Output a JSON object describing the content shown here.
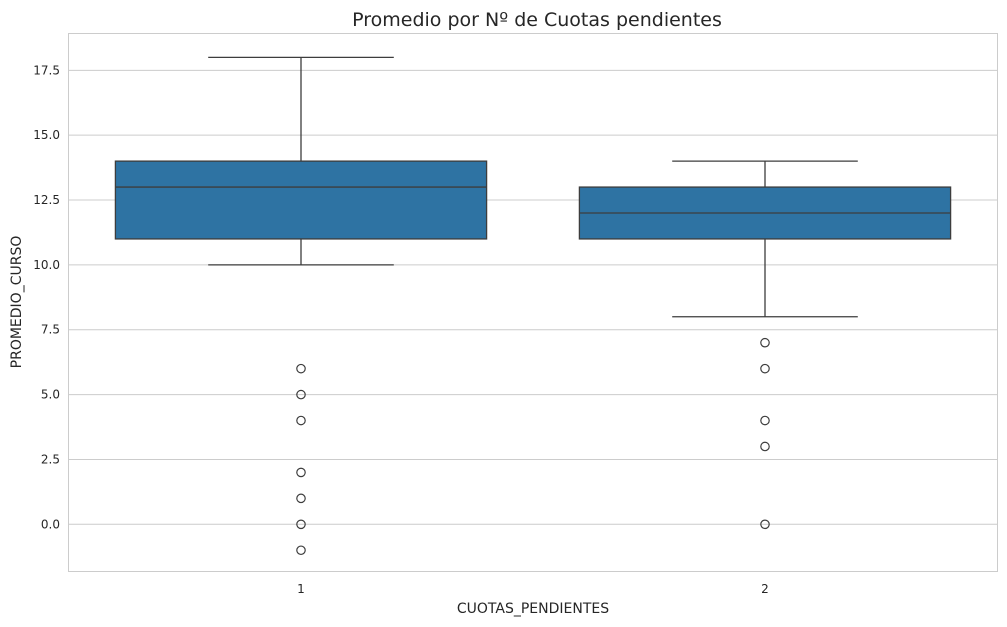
{
  "chart_data": {
    "type": "boxplot",
    "title": "Promedio por Nº de Cuotas pendientes",
    "xlabel": "CUOTAS_PENDIENTES",
    "ylabel": "PROMEDIO_CURSO",
    "ylim": [
      -1.8,
      18.9
    ],
    "y_ticks": [
      "0.0",
      "2.5",
      "5.0",
      "7.5",
      "10.0",
      "12.5",
      "15.0",
      "17.5"
    ],
    "categories": [
      "1",
      "2"
    ],
    "grid": true,
    "box_color": "#2e73a3",
    "line_color": "#3d3d3d",
    "boxes": [
      {
        "category": "1",
        "whisker_low": 10,
        "q1": 11,
        "median": 13,
        "q3": 14,
        "whisker_high": 18,
        "outliers": [
          6,
          5,
          4,
          2,
          1,
          0,
          -1
        ]
      },
      {
        "category": "2",
        "whisker_low": 8,
        "q1": 11,
        "median": 12,
        "q3": 13,
        "whisker_high": 14,
        "outliers": [
          7,
          6,
          4,
          3,
          0
        ]
      }
    ]
  }
}
